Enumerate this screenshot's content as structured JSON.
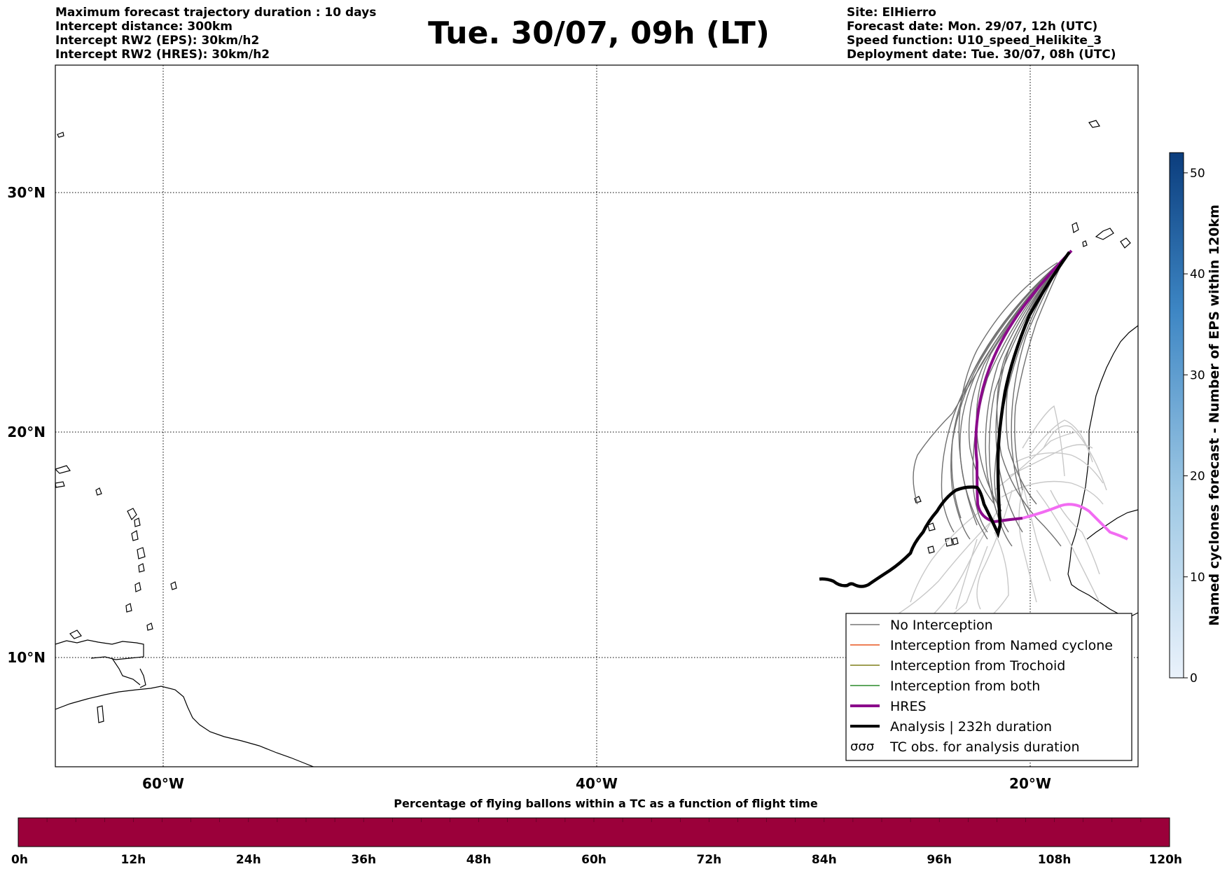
{
  "header": {
    "left_lines": [
      "Maximum forecast trajectory duration : 10 days",
      "Intercept distance: 300km",
      "Intercept RW2 (EPS):  30km/h2",
      "Intercept RW2 (HRES): 30km/h2"
    ],
    "title": "Tue. 30/07, 09h (LT)",
    "right_lines": [
      "Site: ElHierro",
      "Forecast date: Mon. 29/07, 12h (UTC)",
      "Speed function: U10_speed_Helikite_3",
      "Deployment date: Tue. 30/07, 08h (UTC)"
    ]
  },
  "map": {
    "lat_labels": [
      {
        "text": "30°N",
        "lat": 30
      },
      {
        "text": "20°N",
        "lat": 20
      },
      {
        "text": "10°N",
        "lat": 10
      }
    ],
    "lon_labels": [
      {
        "text": "60°W",
        "lon": -60
      },
      {
        "text": "40°W",
        "lon": -40
      },
      {
        "text": "20°W",
        "lon": -20
      }
    ]
  },
  "legend": {
    "items": [
      {
        "label": "No Interception",
        "color": "#777777",
        "kind": "thin"
      },
      {
        "label": "Interception from Named cyclone",
        "color": "#e8551f",
        "kind": "thin"
      },
      {
        "label": "Interception from Trochoid",
        "color": "#7f7f1a",
        "kind": "thin"
      },
      {
        "label": "Interception from both",
        "color": "#2a8a2a",
        "kind": "thin"
      },
      {
        "label": "HRES",
        "color": "#8b0a8b",
        "kind": "thick"
      },
      {
        "label": "Analysis | 232h duration",
        "color": "#000000",
        "kind": "thick"
      },
      {
        "label": "TC obs. for analysis duration",
        "color": "#000000",
        "kind": "symbol"
      }
    ]
  },
  "colorbar_right": {
    "label": "Named cyclones forecast - Number of EPS within 120km",
    "ticks": [
      "0",
      "10",
      "20",
      "30",
      "40",
      "50"
    ],
    "max": 52,
    "color_low": "#eaf2fb",
    "color_high": "#0b3d7d"
  },
  "colorbar_bottom": {
    "title": "Percentage of flying ballons within a TC as a function of flight time",
    "ticks": [
      "0h",
      "12h",
      "24h",
      "36h",
      "48h",
      "60h",
      "72h",
      "84h",
      "96h",
      "108h",
      "120h"
    ],
    "color": "#9b003a"
  }
}
